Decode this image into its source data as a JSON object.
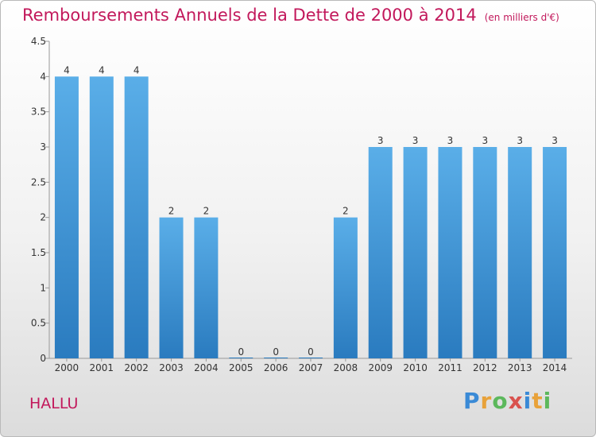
{
  "chart_data": {
    "type": "bar",
    "title": "Remboursements Annuels de la Dette de 2000 à 2014",
    "subtitle": "(en milliers d'€)",
    "categories": [
      "2000",
      "2001",
      "2002",
      "2003",
      "2004",
      "2005",
      "2006",
      "2007",
      "2008",
      "2009",
      "2010",
      "2011",
      "2012",
      "2013",
      "2014"
    ],
    "values": [
      4,
      4,
      4,
      2,
      2,
      0,
      0,
      0,
      2,
      3,
      3,
      3,
      3,
      3,
      3
    ],
    "yticks": [
      "0",
      "0.5",
      "1",
      "1.5",
      "2",
      "2.5",
      "3",
      "3.5",
      "4",
      "4.5"
    ],
    "ylim": [
      0,
      4.5
    ],
    "bar_color_top": "#5aaee8",
    "bar_color_bottom": "#2a7bbf",
    "grid": false
  },
  "footer": {
    "town": "HALLU",
    "logo_letters": [
      "P",
      "r",
      "o",
      "x",
      "i",
      "t",
      "i"
    ],
    "logo_colors": [
      "#3a8ad6",
      "#e8a23a",
      "#5cb85c",
      "#d9534f",
      "#3a8ad6",
      "#e8a23a",
      "#5cb85c"
    ]
  }
}
